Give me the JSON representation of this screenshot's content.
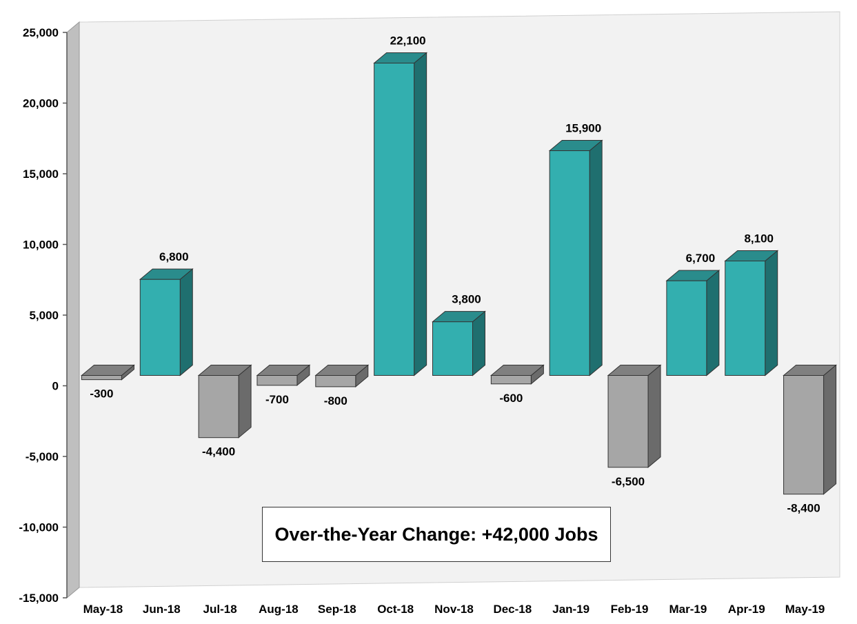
{
  "chart_data": {
    "type": "bar",
    "title": "",
    "xlabel": "",
    "ylabel": "",
    "categories": [
      "May-18",
      "Jun-18",
      "Jul-18",
      "Aug-18",
      "Sep-18",
      "Oct-18",
      "Nov-18",
      "Dec-18",
      "Jan-19",
      "Feb-19",
      "Mar-19",
      "Apr-19",
      "May-19"
    ],
    "values": [
      -300,
      6800,
      -4400,
      -700,
      -800,
      22100,
      3800,
      -600,
      15900,
      -6500,
      6700,
      8100,
      -8400
    ],
    "data_labels": [
      "-300",
      "6,800",
      "-4,400",
      "-700",
      "-800",
      "22,100",
      "3,800",
      "-600",
      "15,900",
      "-6,500",
      "6,700",
      "8,100",
      "-8,400"
    ],
    "ylim": [
      -15000,
      25000
    ],
    "yticks": [
      25000,
      20000,
      15000,
      10000,
      5000,
      0,
      -5000,
      -10000,
      -15000
    ],
    "ytick_labels": [
      "25,000",
      "20,000",
      "15,000",
      "10,000",
      "5,000",
      "0",
      "-5,000",
      "-10,000",
      "-15,000"
    ],
    "grid": false,
    "legend": "none",
    "style": "3d-columns",
    "colors": {
      "positive_front": "#33AFAF",
      "positive_top": "#2A8C8C",
      "positive_side": "#1F6F6F",
      "negative_front": "#A6A6A6",
      "negative_top": "#808080",
      "negative_side": "#6B6B6B",
      "plot_background": "#F2F2F2",
      "wall": "#BFBFBF"
    },
    "annotation": "Over-the-Year Change: +42,000 Jobs"
  }
}
